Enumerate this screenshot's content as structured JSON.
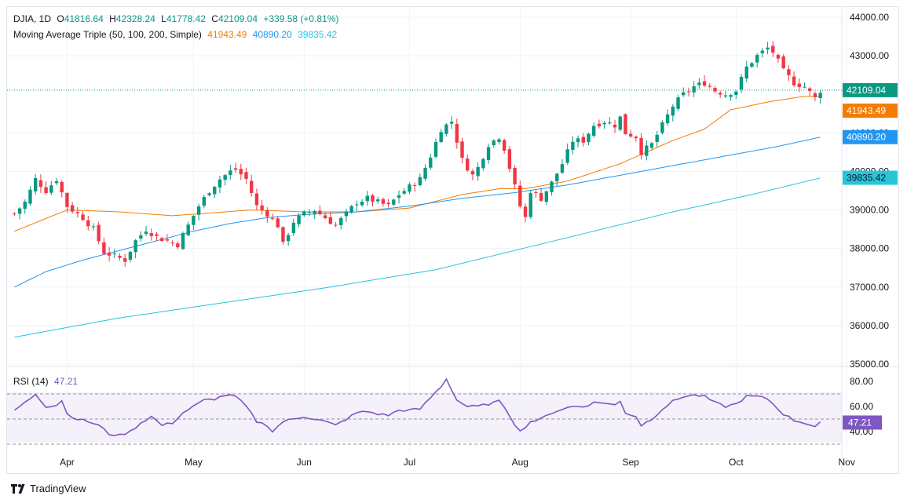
{
  "legend": {
    "symbol": "DJIA, 1D",
    "open_label": "O",
    "open": "41816.64",
    "high_label": "H",
    "high": "42328.24",
    "low_label": "L",
    "low": "41778.42",
    "close_label": "C",
    "close": "42109.04",
    "change": "+339.58 (+0.81%)",
    "ma_title": "Moving Average Triple (50, 100, 200, Simple)",
    "ma50": "41943.49",
    "ma100": "40890.20",
    "ma200": "39835.42",
    "rsi_title": "RSI (14)",
    "rsi_value": "47.21"
  },
  "brand": "TradingView",
  "colors": {
    "up": "#089981",
    "down": "#f23645",
    "ma50": "#f57c00",
    "ma100": "#2196f3",
    "ma200": "#26c6da",
    "rsi": "#7e57c2"
  },
  "chart_data": [
    {
      "type": "candlestick",
      "x_tick_labels": [
        "Apr",
        "May",
        "Jun",
        "Jul",
        "Aug",
        "Sep",
        "Oct",
        "Nov"
      ],
      "x_tick_index": [
        10,
        34,
        55,
        75,
        96,
        117,
        137,
        158
      ],
      "y_tick_labels": [
        "44000.00",
        "43000.00",
        "41000.00",
        "40000.00",
        "39000.00",
        "38000.00",
        "37000.00",
        "36000.00",
        "35000.00"
      ],
      "ylim": [
        35000,
        44300
      ],
      "last_price_label": "42109.04",
      "ma_labels": [
        "41943.49",
        "40890.20",
        "39835.42"
      ],
      "grid": true,
      "anchors": [
        [
          0,
          38900
        ],
        [
          2,
          39200
        ],
        [
          4,
          39800
        ],
        [
          6,
          39500
        ],
        [
          8,
          39800
        ],
        [
          10,
          39100
        ],
        [
          13,
          38800
        ],
        [
          15,
          38500
        ],
        [
          17,
          37900
        ],
        [
          19,
          37800
        ],
        [
          21,
          37700
        ],
        [
          23,
          38200
        ],
        [
          25,
          38500
        ],
        [
          27,
          38300
        ],
        [
          29,
          38200
        ],
        [
          31,
          38100
        ],
        [
          33,
          38600
        ],
        [
          35,
          39100
        ],
        [
          37,
          39500
        ],
        [
          39,
          39800
        ],
        [
          41,
          40000
        ],
        [
          42,
          40050
        ],
        [
          44,
          39800
        ],
        [
          46,
          39100
        ],
        [
          48,
          38900
        ],
        [
          50,
          38600
        ],
        [
          51,
          38100
        ],
        [
          53,
          38700
        ],
        [
          55,
          38900
        ],
        [
          57,
          39000
        ],
        [
          59,
          38800
        ],
        [
          61,
          38600
        ],
        [
          63,
          38900
        ],
        [
          65,
          39200
        ],
        [
          67,
          39300
        ],
        [
          69,
          39200
        ],
        [
          71,
          39100
        ],
        [
          73,
          39400
        ],
        [
          75,
          39600
        ],
        [
          77,
          39800
        ],
        [
          79,
          40400
        ],
        [
          81,
          41100
        ],
        [
          83,
          41300
        ],
        [
          85,
          40300
        ],
        [
          87,
          39900
        ],
        [
          88,
          40100
        ],
        [
          90,
          40700
        ],
        [
          92,
          40900
        ],
        [
          93,
          40600
        ],
        [
          95,
          39600
        ],
        [
          96,
          39100
        ],
        [
          97,
          38800
        ],
        [
          98,
          39500
        ],
        [
          100,
          39300
        ],
        [
          102,
          39700
        ],
        [
          104,
          40200
        ],
        [
          106,
          40800
        ],
        [
          108,
          40800
        ],
        [
          110,
          41200
        ],
        [
          112,
          41300
        ],
        [
          114,
          41200
        ],
        [
          115,
          41400
        ],
        [
          116,
          41000
        ],
        [
          118,
          40900
        ],
        [
          119,
          40500
        ],
        [
          121,
          40700
        ],
        [
          123,
          41200
        ],
        [
          125,
          41700
        ],
        [
          127,
          42000
        ],
        [
          129,
          42200
        ],
        [
          131,
          42300
        ],
        [
          133,
          42100
        ],
        [
          135,
          42000
        ],
        [
          137,
          42100
        ],
        [
          139,
          42700
        ],
        [
          141,
          43000
        ],
        [
          143,
          43200
        ],
        [
          144,
          43100
        ],
        [
          146,
          42600
        ],
        [
          148,
          42300
        ],
        [
          150,
          42200
        ],
        [
          152,
          41900
        ],
        [
          153,
          42100
        ]
      ],
      "ma50_anchors": [
        [
          0,
          38450
        ],
        [
          10,
          39000
        ],
        [
          20,
          38950
        ],
        [
          30,
          38850
        ],
        [
          40,
          38950
        ],
        [
          45,
          39000
        ],
        [
          55,
          38950
        ],
        [
          65,
          38950
        ],
        [
          75,
          39050
        ],
        [
          85,
          39400
        ],
        [
          92,
          39550
        ],
        [
          97,
          39550
        ],
        [
          105,
          39750
        ],
        [
          115,
          40200
        ],
        [
          125,
          40800
        ],
        [
          131,
          41100
        ],
        [
          136,
          41600
        ],
        [
          143,
          41800
        ],
        [
          150,
          41950
        ],
        [
          153,
          41950
        ]
      ],
      "ma100_anchors": [
        [
          0,
          37000
        ],
        [
          6,
          37400
        ],
        [
          13,
          37700
        ],
        [
          20,
          37950
        ],
        [
          27,
          38200
        ],
        [
          34,
          38450
        ],
        [
          41,
          38650
        ],
        [
          48,
          38800
        ],
        [
          55,
          38880
        ],
        [
          65,
          38950
        ],
        [
          75,
          39100
        ],
        [
          85,
          39300
        ],
        [
          95,
          39450
        ],
        [
          105,
          39650
        ],
        [
          115,
          39900
        ],
        [
          125,
          40150
        ],
        [
          135,
          40400
        ],
        [
          145,
          40650
        ],
        [
          153,
          40890
        ]
      ],
      "ma200_anchors": [
        [
          0,
          35700
        ],
        [
          20,
          36200
        ],
        [
          40,
          36600
        ],
        [
          60,
          37000
        ],
        [
          80,
          37450
        ],
        [
          95,
          37950
        ],
        [
          110,
          38450
        ],
        [
          125,
          38950
        ],
        [
          140,
          39400
        ],
        [
          153,
          39830
        ]
      ]
    },
    {
      "type": "line",
      "name": "RSI (14)",
      "y_tick_labels": [
        "80.00",
        "60.00",
        "40.00"
      ],
      "ylim": [
        30,
        85
      ],
      "bands": [
        70,
        30
      ],
      "middle_line": 50,
      "last_value_label": "47.21",
      "anchors": [
        [
          0,
          57
        ],
        [
          2,
          63
        ],
        [
          4,
          70
        ],
        [
          6,
          60
        ],
        [
          8,
          61
        ],
        [
          9,
          65
        ],
        [
          10,
          54
        ],
        [
          12,
          50
        ],
        [
          14,
          48
        ],
        [
          16,
          45
        ],
        [
          18,
          38
        ],
        [
          20,
          37
        ],
        [
          22,
          40
        ],
        [
          24,
          47
        ],
        [
          26,
          52
        ],
        [
          28,
          45
        ],
        [
          30,
          47
        ],
        [
          32,
          55
        ],
        [
          34,
          60
        ],
        [
          36,
          65
        ],
        [
          38,
          66
        ],
        [
          40,
          69
        ],
        [
          42,
          68
        ],
        [
          44,
          60
        ],
        [
          46,
          48
        ],
        [
          48,
          45
        ],
        [
          49,
          40
        ],
        [
          51,
          48
        ],
        [
          53,
          50
        ],
        [
          55,
          52
        ],
        [
          57,
          50
        ],
        [
          59,
          48
        ],
        [
          61,
          45
        ],
        [
          63,
          50
        ],
        [
          65,
          55
        ],
        [
          67,
          56
        ],
        [
          69,
          54
        ],
        [
          71,
          53
        ],
        [
          73,
          57
        ],
        [
          75,
          57
        ],
        [
          77,
          58
        ],
        [
          79,
          67
        ],
        [
          81,
          76
        ],
        [
          82,
          82
        ],
        [
          84,
          65
        ],
        [
          86,
          60
        ],
        [
          88,
          60
        ],
        [
          90,
          62
        ],
        [
          92,
          64
        ],
        [
          93,
          60
        ],
        [
          95,
          46
        ],
        [
          96,
          40
        ],
        [
          98,
          48
        ],
        [
          100,
          50
        ],
        [
          102,
          55
        ],
        [
          104,
          58
        ],
        [
          106,
          60
        ],
        [
          108,
          60
        ],
        [
          110,
          63
        ],
        [
          112,
          63
        ],
        [
          114,
          61
        ],
        [
          115,
          64
        ],
        [
          116,
          55
        ],
        [
          118,
          52
        ],
        [
          119,
          45
        ],
        [
          121,
          50
        ],
        [
          123,
          58
        ],
        [
          125,
          64
        ],
        [
          127,
          68
        ],
        [
          129,
          69
        ],
        [
          131,
          68
        ],
        [
          133,
          63
        ],
        [
          135,
          60
        ],
        [
          137,
          62
        ],
        [
          139,
          68
        ],
        [
          141,
          68
        ],
        [
          143,
          66
        ],
        [
          144,
          62
        ],
        [
          146,
          54
        ],
        [
          148,
          49
        ],
        [
          150,
          47
        ],
        [
          152,
          44
        ],
        [
          153,
          47
        ]
      ]
    }
  ]
}
